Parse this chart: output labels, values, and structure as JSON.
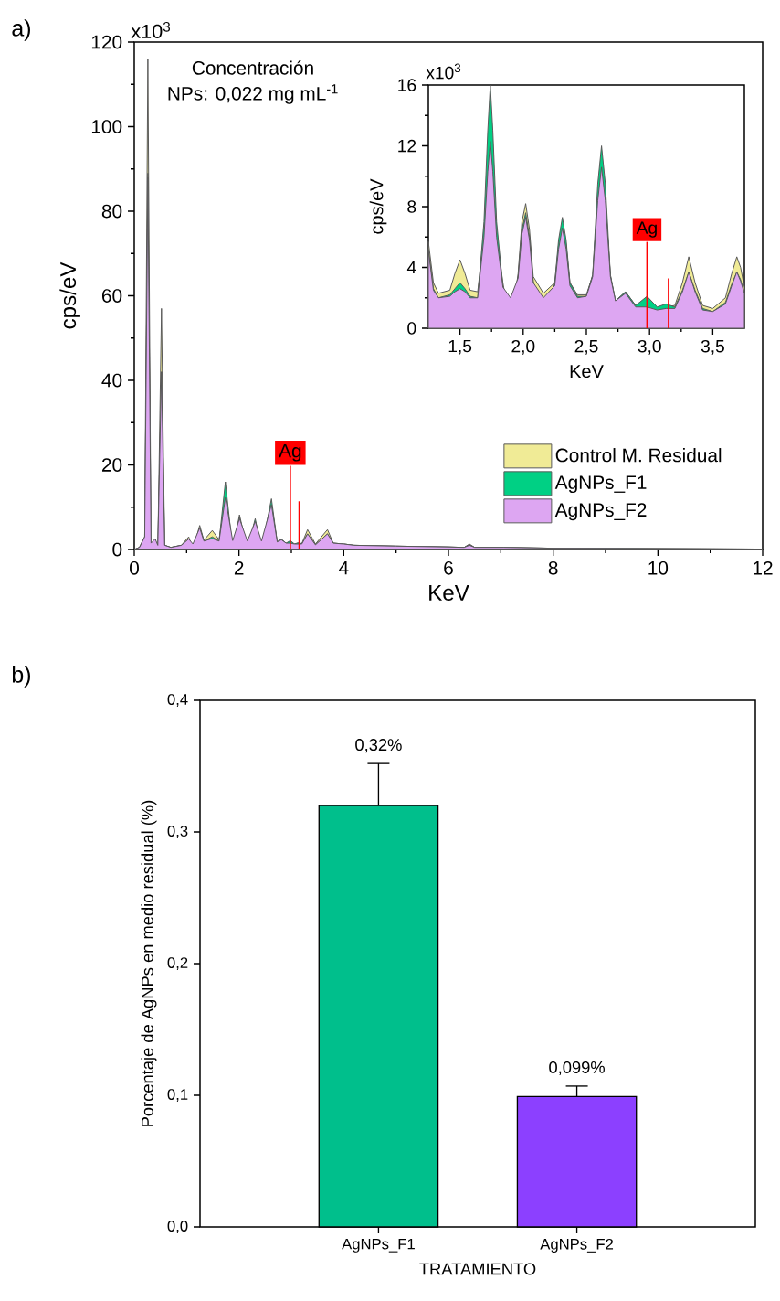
{
  "chart_data": [
    {
      "type": "area",
      "xlabel": "KeV",
      "ylabel": "cps/eV",
      "annotations": [
        "a)",
        "x10$^{3}$",
        "Concentración",
        "NPs: 0,022 mg mL$^{-1}$"
      ],
      "x": [
        0.0,
        0.1,
        0.2,
        0.26,
        0.32,
        0.4,
        0.45,
        0.52,
        0.58,
        0.7,
        0.9,
        1.04,
        1.12,
        1.25,
        1.33,
        1.49,
        1.62,
        1.74,
        1.88,
        2.01,
        2.16,
        2.31,
        2.43,
        2.62,
        2.73,
        2.81,
        2.9,
        2.98,
        3.06,
        3.13,
        3.2,
        3.31,
        3.46,
        3.69,
        3.8,
        4.0,
        4.2,
        5.0,
        6.0,
        6.3,
        6.4,
        6.5,
        7.05,
        8.0,
        10.0,
        12.0
      ],
      "series": [
        {
          "name": "Control M. Residual",
          "color": "#f0eb96",
          "values": [
            0,
            0.5,
            3,
            116,
            null,
            null,
            null,
            57,
            1,
            0.5,
            1,
            3,
            null,
            5.7,
            2.2,
            4.5,
            2.3,
            12.5,
            null,
            8.2,
            null,
            6.8,
            null,
            10.7,
            1.8,
            2.4,
            1.5,
            1.5,
            1.3,
            1.4,
            1.4,
            4.7,
            1.3,
            4.7,
            1.5,
            1.3,
            1,
            0.8,
            0.6,
            0.5,
            1.3,
            0.5,
            0.5,
            0.3,
            0.2,
            0.1
          ]
        },
        {
          "name": "AgNPs_F1",
          "color": "#00d084",
          "values": [
            0,
            0.5,
            3,
            89,
            null,
            2.5,
            null,
            42,
            1,
            0.5,
            1,
            2.5,
            null,
            5.2,
            2,
            3,
            2,
            16,
            null,
            7.6,
            null,
            7.3,
            null,
            12,
            1.8,
            2.4,
            1.5,
            2.1,
            1.3,
            1.6,
            1.4,
            3.7,
            1.1,
            3.7,
            1.5,
            1.3,
            1,
            0.8,
            0.6,
            0.5,
            1.1,
            0.5,
            0.5,
            0.3,
            0.2,
            0.1
          ]
        },
        {
          "name": "AgNPs_F2",
          "color": "#dda6f2",
          "values": [
            0,
            0.5,
            3,
            88,
            1.5,
            2.5,
            1,
            42,
            1,
            0.5,
            1,
            2.5,
            1.3,
            5.1,
            2,
            2.6,
            2,
            12.3,
            2.1,
            7.3,
            2,
            6.6,
            2,
            10.6,
            1.8,
            2.3,
            1.5,
            1.5,
            1.3,
            1.3,
            1.3,
            3.7,
            1.1,
            3.7,
            1.5,
            1.3,
            1,
            0.8,
            0.6,
            0.5,
            1,
            0.5,
            0.5,
            0.3,
            0.2,
            0.1
          ]
        }
      ],
      "xlim": [
        0,
        12
      ],
      "xticks": [
        0,
        2,
        4,
        6,
        8,
        10,
        12
      ],
      "ylim": [
        0,
        120
      ],
      "yticks": [
        0,
        20,
        40,
        60,
        80,
        100,
        120
      ],
      "ref_lines": [
        {
          "axis": "x",
          "value": 2.98,
          "label": "Ag",
          "color": "#ff0000"
        },
        {
          "axis": "x",
          "value": 3.15,
          "color": "#ff0000"
        }
      ],
      "legend": "bottom right"
    },
    {
      "type": "area",
      "xlabel": "KeV",
      "ylabel": "cps/eV",
      "annotations": [
        "x10$^{3}$"
      ],
      "x": [
        1.25,
        1.29,
        1.33,
        1.42,
        1.46,
        1.5,
        1.54,
        1.58,
        1.64,
        1.69,
        1.72,
        1.74,
        1.76,
        1.79,
        1.84,
        1.9,
        1.96,
        1.99,
        2.02,
        2.05,
        2.08,
        2.16,
        2.25,
        2.28,
        2.31,
        2.34,
        2.37,
        2.43,
        2.5,
        2.55,
        2.59,
        2.62,
        2.65,
        2.69,
        2.73,
        2.81,
        2.89,
        2.98,
        3.06,
        3.13,
        3.2,
        3.26,
        3.31,
        3.36,
        3.42,
        3.5,
        3.6,
        3.65,
        3.69,
        3.72,
        3.75
      ],
      "series": [
        {
          "color": "#f0eb96",
          "values": [
            5.7,
            3.0,
            2.3,
            2.5,
            3.6,
            4.5,
            3.6,
            2.5,
            2.4,
            6.0,
            10.5,
            12.5,
            10.5,
            6.0,
            3.0,
            null,
            3.6,
            7.0,
            8.2,
            6.5,
            3.4,
            2.3,
            3.0,
            5.5,
            6.8,
            5.5,
            3.0,
            2.2,
            2.2,
            3.5,
            8.5,
            10.7,
            8.5,
            3.5,
            1.8,
            2.4,
            1.5,
            null,
            1.3,
            1.4,
            1.5,
            3.0,
            4.7,
            3.0,
            1.5,
            1.3,
            2.0,
            3.6,
            4.7,
            4.0,
            2.7
          ]
        },
        {
          "color": "#00d084",
          "values": [
            5.2,
            2.6,
            2.0,
            2.2,
            2.6,
            3.0,
            2.6,
            2.1,
            2.0,
            7.0,
            13.0,
            16.0,
            13.0,
            7.0,
            2.7,
            null,
            3.4,
            6.5,
            7.6,
            6.0,
            3.1,
            null,
            3.0,
            5.8,
            7.3,
            5.8,
            3.0,
            2.1,
            2.1,
            3.5,
            9.5,
            12.0,
            9.5,
            3.5,
            1.8,
            2.4,
            1.5,
            2.1,
            1.4,
            1.6,
            1.4,
            2.5,
            3.7,
            2.5,
            1.3,
            1.1,
            1.7,
            2.9,
            3.7,
            3.2,
            2.3
          ]
        },
        {
          "color": "#dda6f2",
          "values": [
            5.1,
            2.5,
            2.0,
            2.1,
            2.4,
            2.6,
            2.4,
            2.0,
            2.0,
            6.0,
            10.3,
            12.3,
            10.3,
            6.0,
            2.7,
            2.0,
            3.3,
            6.2,
            7.3,
            5.8,
            3.0,
            2.0,
            2.8,
            5.2,
            6.6,
            5.2,
            2.8,
            2.0,
            2.1,
            3.4,
            8.4,
            10.6,
            8.4,
            3.4,
            1.8,
            2.3,
            1.4,
            1.4,
            1.2,
            1.3,
            1.3,
            2.4,
            3.7,
            2.4,
            1.2,
            1.1,
            1.6,
            2.8,
            3.7,
            3.1,
            2.3
          ]
        }
      ],
      "xlim": [
        1.25,
        3.75
      ],
      "xticks": [
        {
          "value": 1.5,
          "label": "1,5"
        },
        {
          "value": 2.0,
          "label": "2,0"
        },
        {
          "value": 2.5,
          "label": "2,5"
        },
        {
          "value": 3.0,
          "label": "3,0"
        },
        {
          "value": 3.5,
          "label": "3,5"
        }
      ],
      "ylim": [
        0,
        16
      ],
      "yticks": [
        0,
        4,
        8,
        12,
        16
      ],
      "ref_lines": [
        {
          "axis": "x",
          "value": 2.98,
          "label": "Ag",
          "color": "#ff0000"
        },
        {
          "axis": "x",
          "value": 3.15,
          "color": "#ff0000"
        }
      ]
    },
    {
      "type": "bar",
      "xlabel": "TRATAMIENTO",
      "ylabel": "Porcentaje de AgNPs en medio residual (%)",
      "annotations": [
        "b)"
      ],
      "categories": [
        "AgNPs_F1",
        "AgNPs_F2"
      ],
      "values": [
        0.32,
        0.099
      ],
      "colors": [
        "#00bf8c",
        "#8c40ff"
      ],
      "errors": [
        [
          0.32,
          0.352
        ],
        [
          0.099,
          0.107
        ]
      ],
      "value_labels": [
        "0,32%",
        "0,099%"
      ],
      "ylim": [
        0,
        0.4
      ],
      "yticks": [
        {
          "value": 0.0,
          "label": "0,0"
        },
        {
          "value": 0.1,
          "label": "0,1"
        },
        {
          "value": 0.2,
          "label": "0,2"
        },
        {
          "value": 0.3,
          "label": "0,3"
        },
        {
          "value": 0.4,
          "label": "0,4"
        }
      ]
    }
  ]
}
